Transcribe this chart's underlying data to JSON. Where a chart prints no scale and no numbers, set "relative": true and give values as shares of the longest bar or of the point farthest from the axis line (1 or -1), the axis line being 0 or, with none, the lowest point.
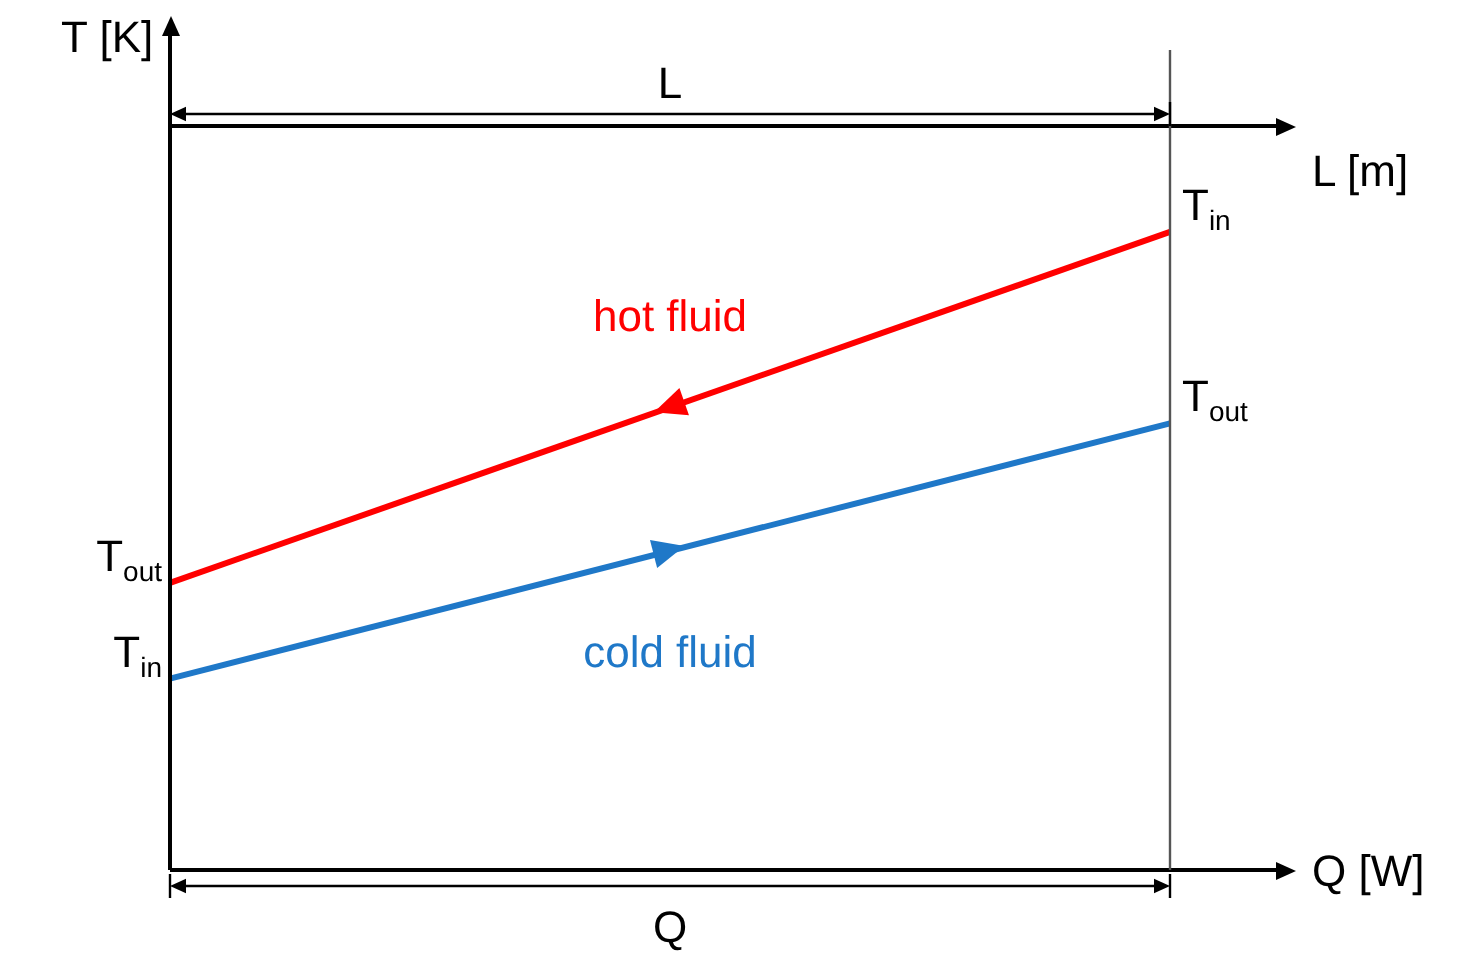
{
  "chart_data": {
    "type": "line",
    "relative": true,
    "categories": [
      null,
      null
    ],
    "legend": false,
    "marker": "none",
    "line_style": "solid",
    "ylabel": "T [K]",
    "xlabel": "Q [W]",
    "x2label": "L [m]",
    "series": [
      {
        "name": "hot fluid",
        "color": "#ff0000",
        "values": [
          0.45,
          1
        ]
      },
      {
        "name": "cold fluid",
        "color": "#1f78c8",
        "values": [
          0.3,
          0.7
        ]
      }
    ],
    "annotations": [
      "T$_{in}$",
      "T$_{out}$",
      "T$_{out}$",
      "T$_{in}$",
      "L",
      "Q"
    ]
  }
}
